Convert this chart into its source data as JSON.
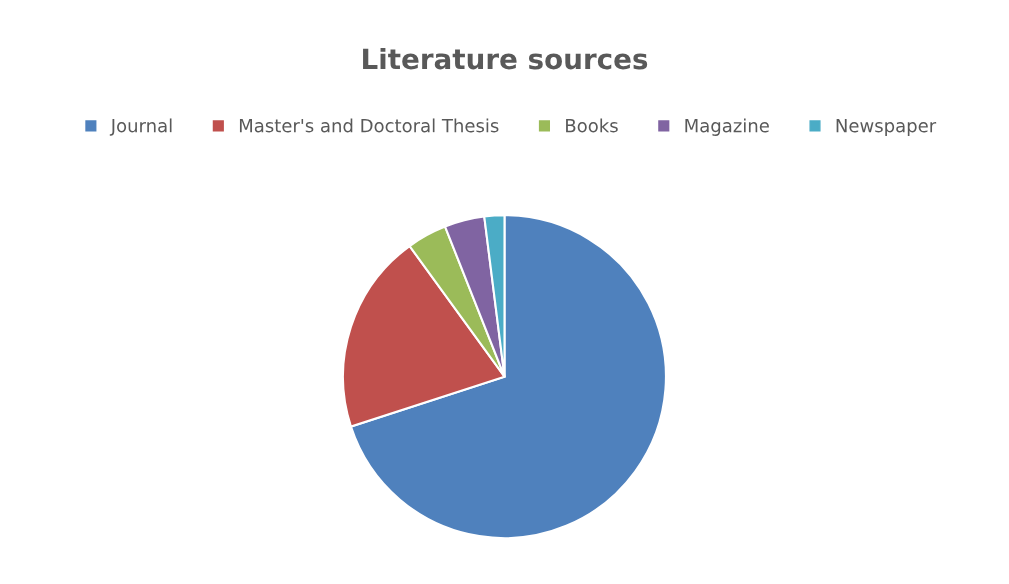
{
  "chart_data": {
    "type": "pie",
    "title": "Literature sources",
    "categories": [
      "Journal",
      "Master's and Doctoral Thesis",
      "Books",
      "Magazine",
      "Newspaper"
    ],
    "values": [
      70,
      20,
      4,
      4,
      2
    ],
    "colors": [
      "#4f81bd",
      "#c0504d",
      "#9bbb59",
      "#8064a2",
      "#4bacc6"
    ],
    "legend": "top"
  }
}
